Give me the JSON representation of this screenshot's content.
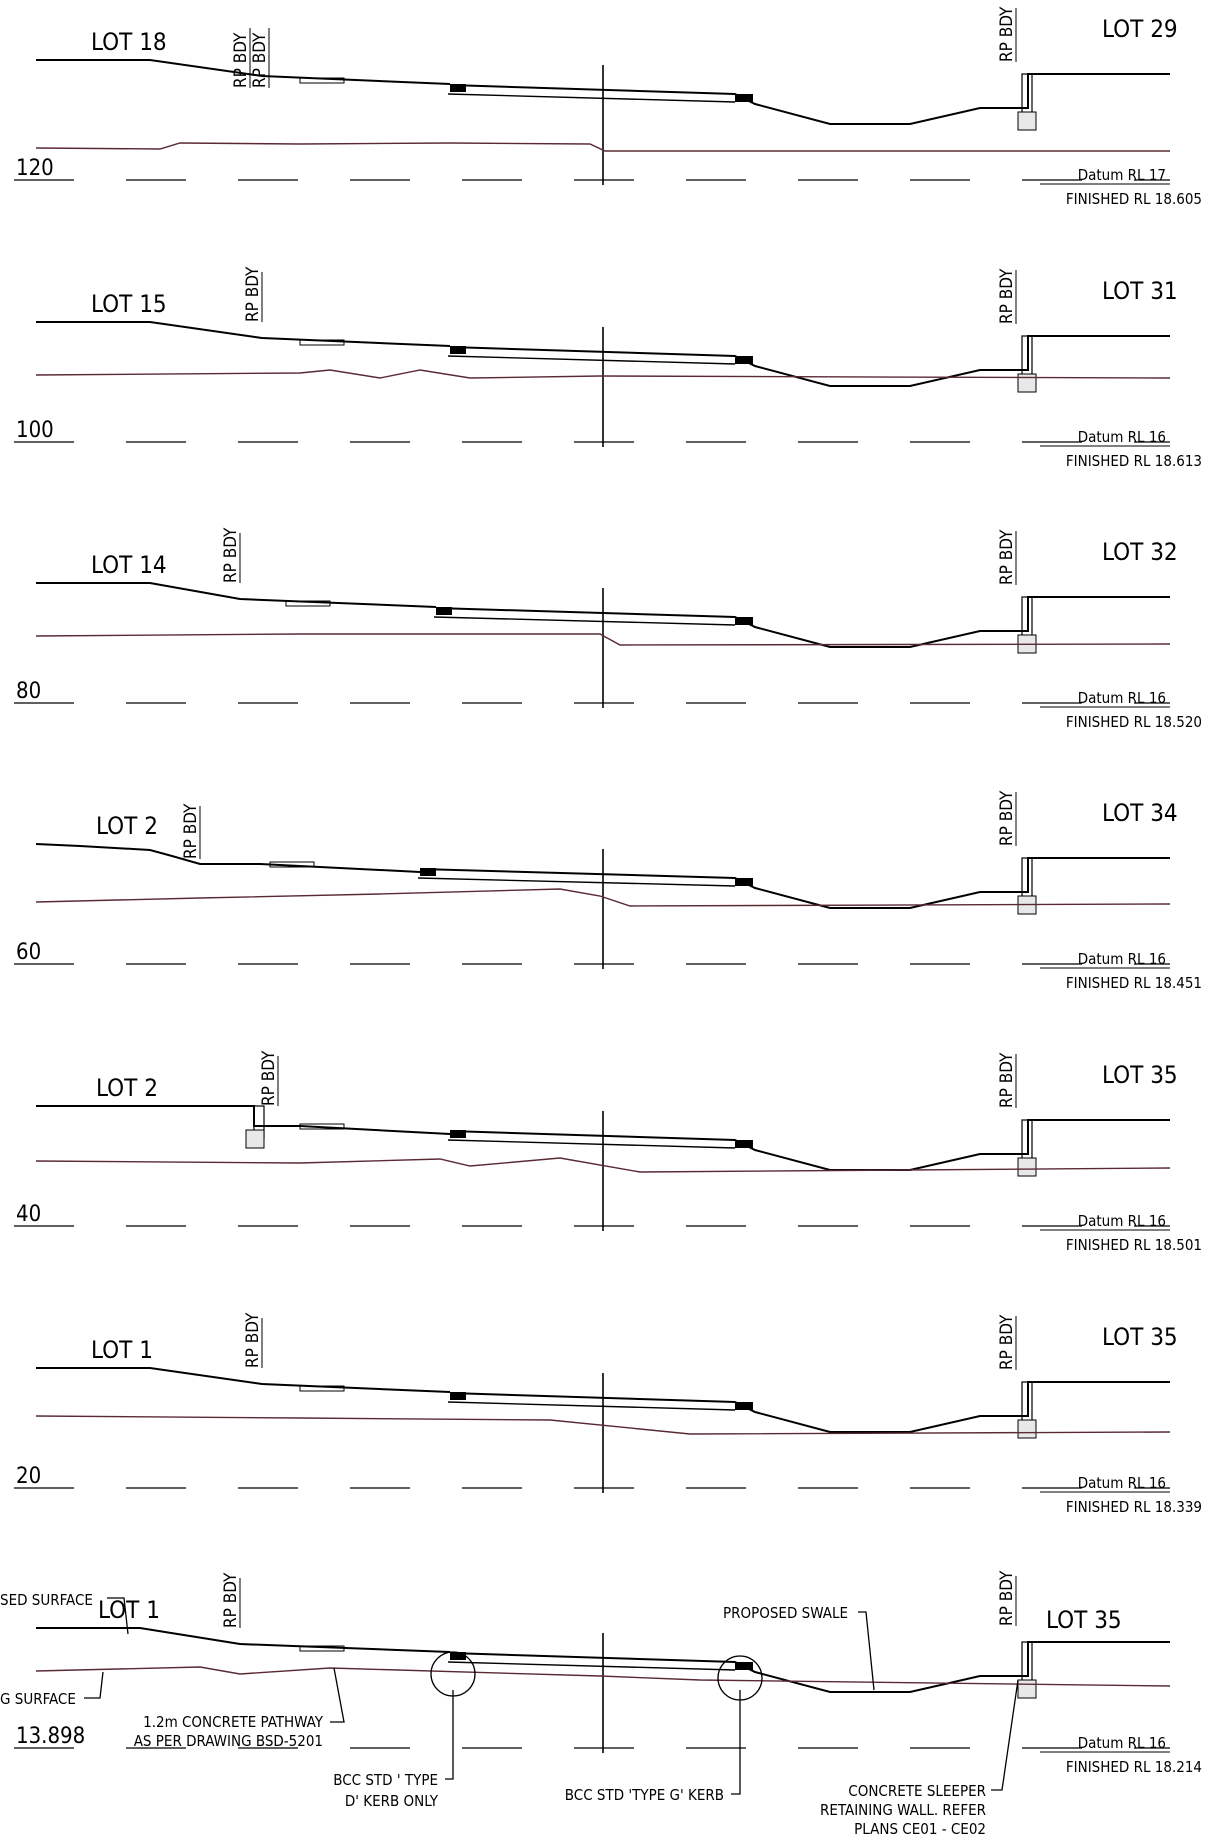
{
  "sections": [
    {
      "chainage": "120",
      "left_lot": "LOT 18",
      "right_lot": "LOT 29",
      "left_bdy": [
        "RP BDY",
        "RP BDY"
      ],
      "right_bdy": "RP BDY",
      "datum": "Datum RL 17",
      "finished": "FINISHED RL  18.605"
    },
    {
      "chainage": "100",
      "left_lot": "LOT 15",
      "right_lot": "LOT 31",
      "left_bdy": [
        "RP BDY"
      ],
      "right_bdy": "RP BDY",
      "datum": "Datum RL 16",
      "finished": "FINISHED RL  18.613"
    },
    {
      "chainage": "80",
      "left_lot": "LOT 14",
      "right_lot": "LOT 32",
      "left_bdy": [
        "RP BDY"
      ],
      "right_bdy": "RP BDY",
      "datum": "Datum RL 16",
      "finished": "FINISHED RL  18.520"
    },
    {
      "chainage": "60",
      "left_lot": "LOT 2",
      "right_lot": "LOT 34",
      "left_bdy": [
        "RP BDY"
      ],
      "right_bdy": "RP BDY",
      "datum": "Datum RL 16",
      "finished": "FINISHED RL  18.451"
    },
    {
      "chainage": "40",
      "left_lot": "LOT 2",
      "right_lot": "LOT 35",
      "left_bdy": [
        "RP BDY"
      ],
      "right_bdy": "RP BDY",
      "datum": "Datum RL 16",
      "finished": "FINISHED RL  18.501"
    },
    {
      "chainage": "20",
      "left_lot": "LOT 1",
      "right_lot": "LOT 35",
      "left_bdy": [
        "RP BDY"
      ],
      "right_bdy": "RP BDY",
      "datum": "Datum RL 16",
      "finished": "FINISHED RL  18.339"
    },
    {
      "chainage": "13.898",
      "left_lot": "LOT 1",
      "right_lot": "LOT 35",
      "left_bdy": [
        "RP BDY"
      ],
      "right_bdy": "RP BDY",
      "datum": "Datum RL 16",
      "finished": "FINISHED RL  18.214"
    }
  ],
  "annotations": {
    "proposed_surface": "SED SURFACE",
    "existing_surface": "G SURFACE",
    "pathway_1": "1.2m CONCRETE PATHWAY",
    "pathway_2": "AS PER DRAWING BSD-5201",
    "kerb_d_1": "BCC STD ' TYPE",
    "kerb_d_2": "D' KERB ONLY",
    "kerb_g": "BCC STD 'TYPE G' KERB",
    "swale": "PROPOSED SWALE",
    "wall_1": "CONCRETE SLEEPER",
    "wall_2": "RETAINING WALL. REFER",
    "wall_3": "PLANS CE01 - CE02"
  },
  "colors": {
    "line": "#000000",
    "existing_ground": "#5a2a33"
  }
}
